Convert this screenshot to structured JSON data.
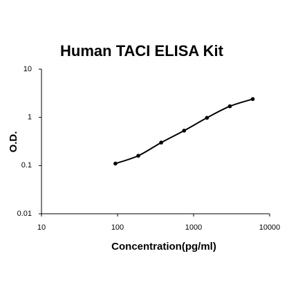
{
  "chart_data": {
    "type": "line",
    "title": "Human TACI ELISA Kit",
    "x_label": "Concentration(pg/ml)",
    "y_label": "O.D.",
    "x": [
      93.75,
      187.5,
      375,
      750,
      1500,
      3000,
      6000
    ],
    "values": [
      0.11,
      0.16,
      0.3,
      0.53,
      0.98,
      1.7,
      2.4
    ],
    "color": "#000000",
    "markers": true,
    "xscale": "log",
    "yscale": "log",
    "xlim": [
      10,
      10000
    ],
    "ylim": [
      0.01,
      10
    ],
    "xticks": [
      10,
      100,
      1000,
      10000
    ],
    "yticks": [
      0.01,
      0.1,
      1,
      10
    ]
  }
}
